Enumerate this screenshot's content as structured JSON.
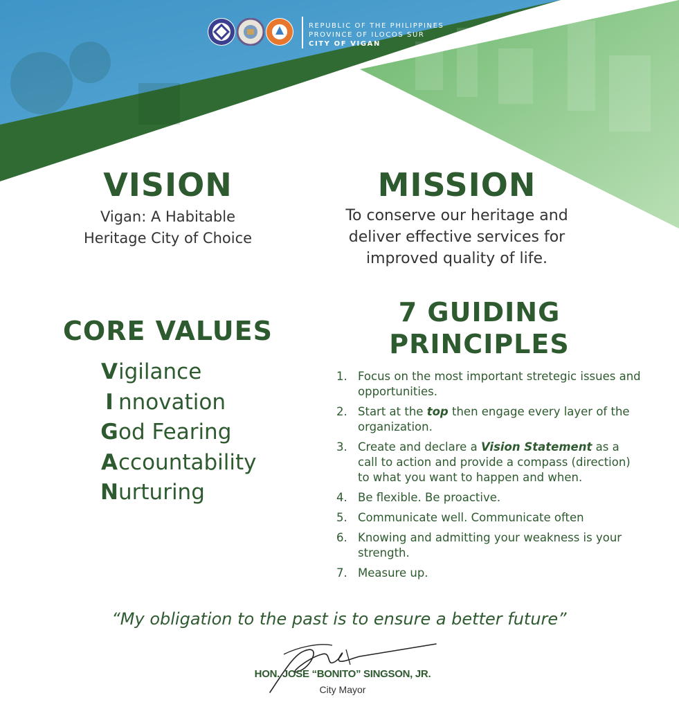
{
  "header": {
    "line1": "REPUBLIC OF THE PHILIPPINES",
    "line2": "PROVINCE OF ILOCOS SUR",
    "line3": "CITY OF VIGAN",
    "seals": [
      "unesco-heritage-seal-icon",
      "city-of-vigan-seal-icon",
      "new-seven-wonders-cities-seal-icon"
    ]
  },
  "vision": {
    "title": "VISION",
    "line1": "Vigan: A Habitable",
    "line2": "Heritage City of Choice"
  },
  "mission": {
    "title": "MISSION",
    "line1": "To conserve our heritage and",
    "line2": "deliver effective services for",
    "line3": "improved quality of life."
  },
  "core_values": {
    "title": "CORE VALUES",
    "items": [
      {
        "initial": "V",
        "rest": "igilance"
      },
      {
        "initial": "I",
        "rest": "nnovation"
      },
      {
        "initial": "G",
        "rest": "od Fearing"
      },
      {
        "initial": "A",
        "rest": "ccountability"
      },
      {
        "initial": "N",
        "rest": "urturing"
      }
    ]
  },
  "principles": {
    "title_line1": "7 GUIDING",
    "title_line2": "PRINCIPLES",
    "items": [
      {
        "num": "1.",
        "pre": "Focus on the most important stretegic issues and opportunities.",
        "em": "",
        "post": ""
      },
      {
        "num": "2.",
        "pre": "Start at the ",
        "em": "top",
        "post": " then engage every layer of the organization."
      },
      {
        "num": "3.",
        "pre": "Create and declare a ",
        "em": "Vision Statement",
        "post": " as a call to action and provide a compass (direction) to what you want to happen and when."
      },
      {
        "num": "4.",
        "pre": "Be flexible. Be proactive.",
        "em": "",
        "post": ""
      },
      {
        "num": "5.",
        "pre": "Communicate well. Communicate often",
        "em": "",
        "post": ""
      },
      {
        "num": "6.",
        "pre": "Knowing and admitting your weakness is your strength.",
        "em": "",
        "post": ""
      },
      {
        "num": "7.",
        "pre": "Measure up.",
        "em": "",
        "post": ""
      }
    ]
  },
  "quote": "“My obligation to the past is to ensure a better future”",
  "mayor": {
    "name": "HON. JOSE “BONITO” SINGSON, JR.",
    "title": "City Mayor"
  },
  "colors": {
    "dark_green": "#2e5a2f",
    "light_green": "#8cc98c",
    "blue": "#4a9fd0",
    "text_gray": "#333333"
  }
}
